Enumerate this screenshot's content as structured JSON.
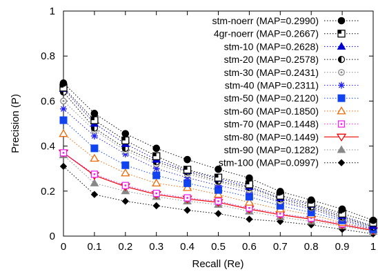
{
  "chart_data": {
    "type": "line",
    "title": "",
    "xlabel": "Recall (Re)",
    "ylabel": "Precision (P)",
    "xlim": [
      0,
      1
    ],
    "ylim": [
      0,
      1
    ],
    "x_ticks": [
      "0",
      "0.1",
      "0.2",
      "0.3",
      "0.4",
      "0.5",
      "0.6",
      "0.7",
      "0.8",
      "0.9",
      "1"
    ],
    "y_ticks": [
      "0",
      "0.2",
      "0.4",
      "0.6",
      "0.8",
      "1"
    ],
    "grid": false,
    "legend_position": "top-right",
    "x": [
      0,
      0.1,
      0.2,
      0.3,
      0.4,
      0.5,
      0.6,
      0.7,
      0.8,
      0.9,
      1.0
    ],
    "series": [
      {
        "name": "stm-noerr (MAP=0.2990)",
        "color": "#000000",
        "marker": "filled-circle",
        "line": "dotted",
        "values": [
          0.68,
          0.545,
          0.455,
          0.39,
          0.34,
          0.297,
          0.258,
          0.198,
          0.16,
          0.12,
          0.07
        ]
      },
      {
        "name": "4gr-noerr (MAP=0.2667)",
        "color": "#000000",
        "marker": "half-square",
        "line": "dotted",
        "values": [
          0.66,
          0.515,
          0.425,
          0.355,
          0.295,
          0.26,
          0.23,
          0.18,
          0.145,
          0.1,
          0.06
        ]
      },
      {
        "name": "stm-10 (MAP=0.2628)",
        "color": "#0000cc",
        "marker": "filled-triangle",
        "line": "dotted",
        "values": [
          0.655,
          0.5,
          0.41,
          0.34,
          0.29,
          0.255,
          0.22,
          0.17,
          0.14,
          0.09,
          0.045
        ]
      },
      {
        "name": "stm-20 (MAP=0.2578)",
        "color": "#000000",
        "marker": "half-circle",
        "line": "dotted",
        "values": [
          0.64,
          0.48,
          0.39,
          0.33,
          0.285,
          0.245,
          0.215,
          0.165,
          0.13,
          0.085,
          0.04
        ]
      },
      {
        "name": "stm-30 (MAP=0.2431)",
        "color": "#888888",
        "marker": "open-circle",
        "line": "dotted",
        "values": [
          0.6,
          0.47,
          0.38,
          0.32,
          0.275,
          0.24,
          0.205,
          0.155,
          0.125,
          0.08,
          0.04
        ]
      },
      {
        "name": "stm-40 (MAP=0.2311)",
        "color": "#2222ee",
        "marker": "asterisk",
        "line": "dotted",
        "values": [
          0.565,
          0.445,
          0.365,
          0.3,
          0.26,
          0.225,
          0.195,
          0.15,
          0.12,
          0.075,
          0.035
        ]
      },
      {
        "name": "stm-50 (MAP=0.2120)",
        "color": "#1144ee",
        "marker": "filled-square",
        "line": "dotted",
        "values": [
          0.515,
          0.39,
          0.315,
          0.27,
          0.235,
          0.205,
          0.175,
          0.135,
          0.105,
          0.07,
          0.03
        ]
      },
      {
        "name": "stm-60 (MAP=0.1850)",
        "color": "#ee6600",
        "marker": "open-triangle",
        "line": "dotted",
        "values": [
          0.455,
          0.345,
          0.28,
          0.235,
          0.215,
          0.185,
          0.15,
          0.12,
          0.095,
          0.06,
          0.03
        ]
      },
      {
        "name": "stm-70 (MAP=0.1448)",
        "color": "#ee22ee",
        "marker": "open-square",
        "line": "dotted",
        "values": [
          0.37,
          0.275,
          0.225,
          0.19,
          0.17,
          0.155,
          0.125,
          0.1,
          0.08,
          0.055,
          0.03
        ]
      },
      {
        "name": "stm-80 (MAP=0.1449)",
        "color": "#ee0000",
        "marker": "open-down-triangle",
        "line": "solid",
        "values": [
          0.37,
          0.27,
          0.22,
          0.185,
          0.165,
          0.15,
          0.12,
          0.095,
          0.075,
          0.05,
          0.025
        ]
      },
      {
        "name": "stm-90 (MAP=0.1282)",
        "color": "#888888",
        "marker": "filled-triangle",
        "line": "dotted",
        "values": [
          0.36,
          0.235,
          0.2,
          0.175,
          0.155,
          0.14,
          0.11,
          0.085,
          0.065,
          0.045,
          0.02
        ]
      },
      {
        "name": "stm-100 (MAP=0.0997)",
        "color": "#000000",
        "marker": "filled-diamond",
        "line": "dotted",
        "values": [
          0.31,
          0.185,
          0.155,
          0.135,
          0.115,
          0.1,
          0.075,
          0.065,
          0.05,
          0.03,
          0.01
        ]
      }
    ]
  }
}
